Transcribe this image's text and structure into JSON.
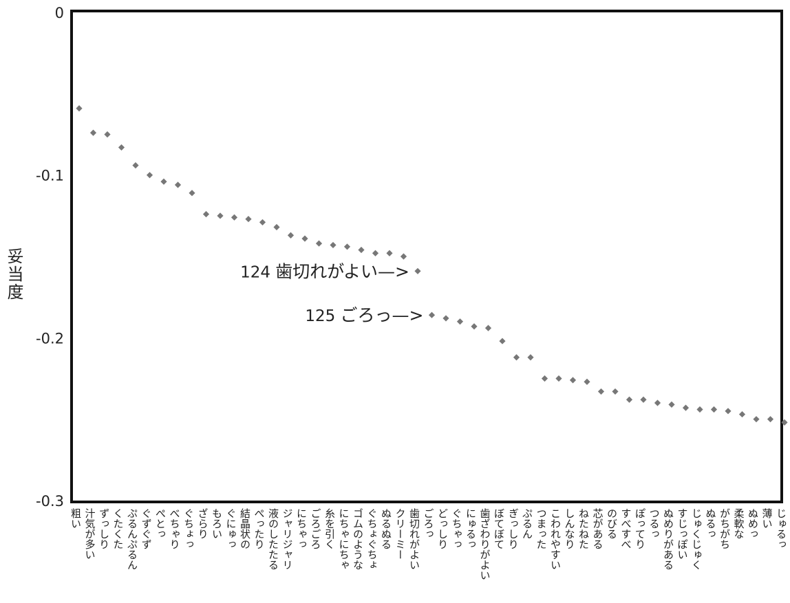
{
  "chart_data": {
    "type": "scatter",
    "title": "",
    "xlabel": "",
    "ylabel": "妥当度",
    "ylim": [
      -0.3,
      0
    ],
    "yticks": [
      0,
      -0.1,
      -0.2,
      -0.3
    ],
    "ytick_labels": [
      "0",
      "-0.1",
      "-0.2",
      "-0.3"
    ],
    "grid": false,
    "marker_color": "#777777",
    "categories": [
      "粗い",
      "汁気が多い",
      "ずっしり",
      "くたくた",
      "ぷるんぷるん",
      "ぐずぐず",
      "ぺとっ",
      "べちゃり",
      "ぐちょっ",
      "ざらり",
      "もろい",
      "ぐにゅっ",
      "結晶状の",
      "ぺったり",
      "液のしたたる",
      "ジャリジャリ",
      "にちゃっ",
      "ごろごろ",
      "糸を引く",
      "にちゃにちゃ",
      "ゴムのような",
      "ぐちょぐちょ",
      "ぬるぬる",
      "クリーミー",
      "歯切れがよい",
      "ごろっ",
      "どっしり",
      "ぐちゃっ",
      "にゅるっ",
      "歯ざわりがよい",
      "ぼてぼて",
      "ぎっしり",
      "ぷるん",
      "つまった",
      "こわれやすい",
      "しんなり",
      "ねたねた",
      "芯がある",
      "のびる",
      "すべすべ",
      "ぽってり",
      "つるっ",
      "ぬめりがある",
      "すじっぽい",
      "じゅくじゅく",
      "ぬるっ",
      "がちがち",
      "柔軟な",
      "ぬめっ",
      "薄い",
      "じゅるっ"
    ],
    "values": [
      -0.059,
      -0.074,
      -0.075,
      -0.083,
      -0.094,
      -0.1,
      -0.104,
      -0.106,
      -0.111,
      -0.124,
      -0.125,
      -0.126,
      -0.127,
      -0.129,
      -0.132,
      -0.137,
      -0.139,
      -0.142,
      -0.143,
      -0.144,
      -0.146,
      -0.148,
      -0.148,
      -0.15,
      -0.159,
      -0.186,
      -0.188,
      -0.19,
      -0.193,
      -0.194,
      -0.202,
      -0.212,
      -0.212,
      -0.225,
      -0.225,
      -0.226,
      -0.227,
      -0.233,
      -0.233,
      -0.238,
      -0.238,
      -0.24,
      -0.241,
      -0.243,
      -0.244,
      -0.244,
      -0.245,
      -0.247,
      -0.25,
      -0.25,
      -0.252
    ],
    "annotations": [
      {
        "number": "124",
        "text": "歯切れがよい",
        "arrow": "—>",
        "index": 24
      },
      {
        "number": "125",
        "text": "ごろっ",
        "arrow": "—>",
        "index": 25
      }
    ]
  }
}
